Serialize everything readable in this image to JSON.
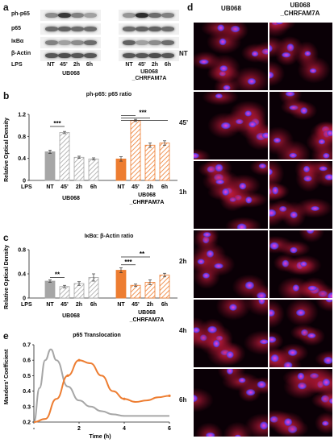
{
  "panel_a": {
    "letter": "a",
    "rows": [
      "ph-p65",
      "p65",
      "IκBα",
      "β-Actin"
    ],
    "lps_label": "LPS",
    "lanes_g1": [
      "NT",
      "45’",
      "2h",
      "6h"
    ],
    "lanes_g2": [
      "NT",
      "45’",
      "2h",
      "6h"
    ],
    "group1": "UB068",
    "group2_line1": "UB068",
    "group2_line2": "_CHRFAM7A"
  },
  "panel_b": {
    "letter": "b",
    "title": "ph-p65: p65 ratio",
    "ylabel": "Relative Optical Density",
    "yticks": [
      "1.2",
      "0.8",
      "0.4",
      "0"
    ],
    "lps_label": "LPS",
    "xcats": [
      "NT",
      "45’",
      "2h",
      "6h",
      "NT",
      "45’",
      "2h",
      "6h"
    ],
    "group1": "UB068",
    "group2_line1": "UB068",
    "group2_line2": "_CHRFAM7A",
    "sig": [
      "***",
      "***"
    ]
  },
  "panel_c": {
    "letter": "c",
    "title": "IκBα: β-Actin ratio",
    "ylabel": "Relative Optical Density",
    "yticks": [
      "0.8",
      "0.4",
      "0"
    ],
    "lps_label": "LPS",
    "xcats": [
      "NT",
      "45’",
      "2h",
      "6h",
      "NT",
      "45’",
      "2h",
      "6h"
    ],
    "group1": "UB068",
    "group2_line1": "UB068",
    "group2_line2": "_CHRFAM7A",
    "sig": [
      "**",
      "**",
      "***"
    ]
  },
  "panel_e": {
    "letter": "e",
    "title": "p65 Translocation",
    "ylabel": "Manders' Coefficient",
    "xlabel": "Time (h)",
    "yticks": [
      "0.7",
      "0.6",
      "0.5",
      "0.4",
      "0.3",
      "0.2"
    ],
    "xticks": [
      "-",
      "2",
      "4",
      "6"
    ]
  },
  "panel_d": {
    "letter": "d",
    "col1": "UB068",
    "col2_line1": "UB068",
    "col2_line2": "_CHRFAM7A",
    "rows": [
      "NT",
      "45’",
      "1h",
      "2h",
      "4h",
      "6h"
    ]
  },
  "colors": {
    "ub068": "#a6a6a6",
    "chrfam7a": "#ed7d31",
    "line_gray": "#a6a6a6",
    "line_orange": "#ed7d31"
  },
  "chart_data": [
    {
      "type": "bar",
      "panel": "b",
      "title": "ph-p65: p65 ratio",
      "ylabel": "Relative Optical Density",
      "ylim": [
        0,
        1.2
      ],
      "categories": [
        "NT",
        "45’",
        "2h",
        "6h",
        "NT",
        "45’",
        "2h",
        "6h"
      ],
      "series": [
        {
          "name": "UB068",
          "values": [
            0.52,
            0.87,
            0.42,
            0.39,
            null,
            null,
            null,
            null
          ],
          "errors": [
            0.03,
            0.02,
            0.02,
            0.02,
            null,
            null,
            null,
            null
          ]
        },
        {
          "name": "UB068_CHRFAM7A",
          "values": [
            null,
            null,
            null,
            null,
            0.39,
            1.09,
            0.64,
            0.68
          ],
          "errors": [
            null,
            null,
            null,
            null,
            0.04,
            0.02,
            0.04,
            0.04
          ]
        }
      ]
    },
    {
      "type": "bar",
      "panel": "c",
      "title": "IκBα: β-Actin ratio",
      "ylabel": "Relative Optical Density",
      "ylim": [
        0,
        0.8
      ],
      "categories": [
        "NT",
        "45’",
        "2h",
        "6h",
        "NT",
        "45’",
        "2h",
        "6h"
      ],
      "series": [
        {
          "name": "UB068",
          "values": [
            0.28,
            0.19,
            0.24,
            0.34,
            null,
            null,
            null,
            null
          ],
          "errors": [
            0.02,
            0.02,
            0.03,
            0.06,
            null,
            null,
            null,
            null
          ]
        },
        {
          "name": "UB068_CHRFAM7A",
          "values": [
            null,
            null,
            null,
            null,
            0.46,
            0.21,
            0.26,
            0.38
          ],
          "errors": [
            null,
            null,
            null,
            null,
            0.04,
            0.02,
            0.04,
            0.03
          ]
        }
      ]
    },
    {
      "type": "line",
      "panel": "e",
      "title": "p65 Translocation",
      "xlabel": "Time (h)",
      "ylabel": "Manders' Coefficient",
      "ylim": [
        0.2,
        0.7
      ],
      "series": [
        {
          "name": "UB068",
          "x": [
            0,
            0.25,
            0.5,
            0.75,
            1,
            1.5,
            2,
            2.5,
            3,
            3.5,
            4,
            5,
            6
          ],
          "y": [
            0.2,
            0.42,
            0.6,
            0.67,
            0.6,
            0.43,
            0.34,
            0.3,
            0.27,
            0.25,
            0.24,
            0.24,
            0.24
          ]
        },
        {
          "name": "UB068_CHRFAM7A",
          "x": [
            0,
            0.5,
            1,
            1.5,
            2,
            2.5,
            3,
            3.5,
            4,
            4.5,
            5,
            5.5,
            6
          ],
          "y": [
            0.2,
            0.22,
            0.35,
            0.5,
            0.6,
            0.58,
            0.5,
            0.4,
            0.35,
            0.33,
            0.34,
            0.36,
            0.37
          ]
        }
      ]
    }
  ]
}
